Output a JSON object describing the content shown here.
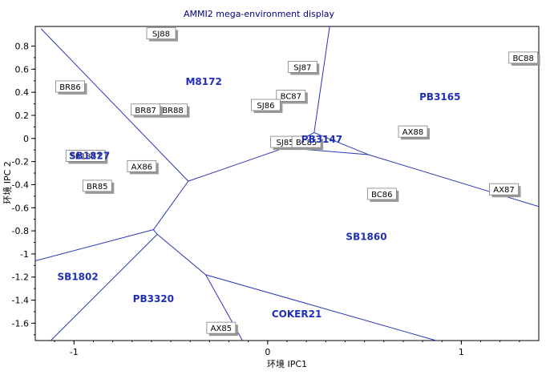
{
  "chart_data": {
    "type": "scatter",
    "title": "AMMI2 mega-environment display",
    "xlabel": "环境 IPC1",
    "ylabel": "环境 IPC 2",
    "xlim": [
      -1.2,
      1.4
    ],
    "ylim": [
      -1.75,
      0.97
    ],
    "x_ticks": [
      {
        "value": -1,
        "label": "-1"
      },
      {
        "value": 0,
        "label": "0"
      },
      {
        "value": 1,
        "label": "1"
      }
    ],
    "y_ticks": [
      {
        "value": 0.8,
        "label": "0.8"
      },
      {
        "value": 0.6,
        "label": "0.6"
      },
      {
        "value": 0.4,
        "label": "0.4"
      },
      {
        "value": 0.2,
        "label": "0.2"
      },
      {
        "value": 0,
        "label": "0"
      },
      {
        "value": -0.2,
        "label": "-0.2"
      },
      {
        "value": -0.4,
        "label": "-0.4"
      },
      {
        "value": -0.6,
        "label": "-0.6"
      },
      {
        "value": -0.8,
        "label": "-0.8"
      },
      {
        "value": -1,
        "label": "-1"
      },
      {
        "value": -1.2,
        "label": "-1.2"
      },
      {
        "value": -1.4,
        "label": "-1.4"
      },
      {
        "value": -1.6,
        "label": "-1.6"
      }
    ],
    "grid": false,
    "colors": {
      "boundary": "#2a36b8",
      "genotype": "#1f2fb8",
      "axes": "#000000"
    },
    "environments": [
      {
        "name": "SJ88",
        "x": -0.55,
        "y": 0.91
      },
      {
        "name": "BR86",
        "x": -1.02,
        "y": 0.45
      },
      {
        "name": "SJ87",
        "x": 0.18,
        "y": 0.62
      },
      {
        "name": "BC87",
        "x": 0.12,
        "y": 0.37
      },
      {
        "name": "SJ86",
        "x": -0.01,
        "y": 0.29
      },
      {
        "name": "BR88",
        "x": -0.49,
        "y": 0.25
      },
      {
        "name": "BR87",
        "x": -0.63,
        "y": 0.25
      },
      {
        "name": "SB1827",
        "x": -0.94,
        "y": -0.15
      },
      {
        "name": "SJ85",
        "x": 0.09,
        "y": -0.03
      },
      {
        "name": "BC85",
        "x": 0.2,
        "y": -0.03
      },
      {
        "name": "AX88",
        "x": 0.75,
        "y": 0.06
      },
      {
        "name": "BC88",
        "x": 1.32,
        "y": 0.7
      },
      {
        "name": "AX86",
        "x": -0.65,
        "y": -0.24
      },
      {
        "name": "BR85",
        "x": -0.88,
        "y": -0.41
      },
      {
        "name": "BC86",
        "x": 0.59,
        "y": -0.48
      },
      {
        "name": "AX87",
        "x": 1.22,
        "y": -0.44
      },
      {
        "name": "AX85",
        "x": -0.24,
        "y": -1.64
      }
    ],
    "genotypes": [
      {
        "name": "M8172",
        "x": -0.33,
        "y": 0.49
      },
      {
        "name": "PB3165",
        "x": 0.89,
        "y": 0.36
      },
      {
        "name": "SB1827",
        "x": -0.92,
        "y": -0.15
      },
      {
        "name": "PB3147",
        "x": 0.28,
        "y": -0.01
      },
      {
        "name": "SB1860",
        "x": 0.51,
        "y": -0.85
      },
      {
        "name": "SB1802",
        "x": -0.98,
        "y": -1.2
      },
      {
        "name": "PB3320",
        "x": -0.59,
        "y": -1.39
      },
      {
        "name": "COKER21",
        "x": 0.15,
        "y": -1.52
      }
    ],
    "boundary_lines": [
      [
        [
          -1.17,
          0.95
        ],
        [
          -0.41,
          -0.37
        ]
      ],
      [
        [
          -0.41,
          -0.37
        ],
        [
          0.09,
          -0.08
        ]
      ],
      [
        [
          0.09,
          -0.08
        ],
        [
          0.24,
          0.05
        ]
      ],
      [
        [
          0.24,
          0.05
        ],
        [
          0.32,
          0.97
        ]
      ],
      [
        [
          0.24,
          0.05
        ],
        [
          0.52,
          -0.14
        ]
      ],
      [
        [
          0.09,
          -0.08
        ],
        [
          0.52,
          -0.14
        ]
      ],
      [
        [
          0.52,
          -0.14
        ],
        [
          1.4,
          -0.59
        ]
      ],
      [
        [
          -0.41,
          -0.37
        ],
        [
          -0.59,
          -0.79
        ]
      ],
      [
        [
          -0.59,
          -0.79
        ],
        [
          -1.2,
          -1.06
        ]
      ],
      [
        [
          -0.59,
          -0.79
        ],
        [
          -0.57,
          -0.83
        ]
      ],
      [
        [
          -0.57,
          -0.83
        ],
        [
          -1.12,
          -1.75
        ]
      ],
      [
        [
          -0.57,
          -0.83
        ],
        [
          -0.32,
          -1.18
        ]
      ],
      [
        [
          -0.32,
          -1.18
        ],
        [
          -0.13,
          -1.75
        ]
      ],
      [
        [
          -0.32,
          -1.18
        ],
        [
          0.87,
          -1.75
        ]
      ]
    ]
  }
}
